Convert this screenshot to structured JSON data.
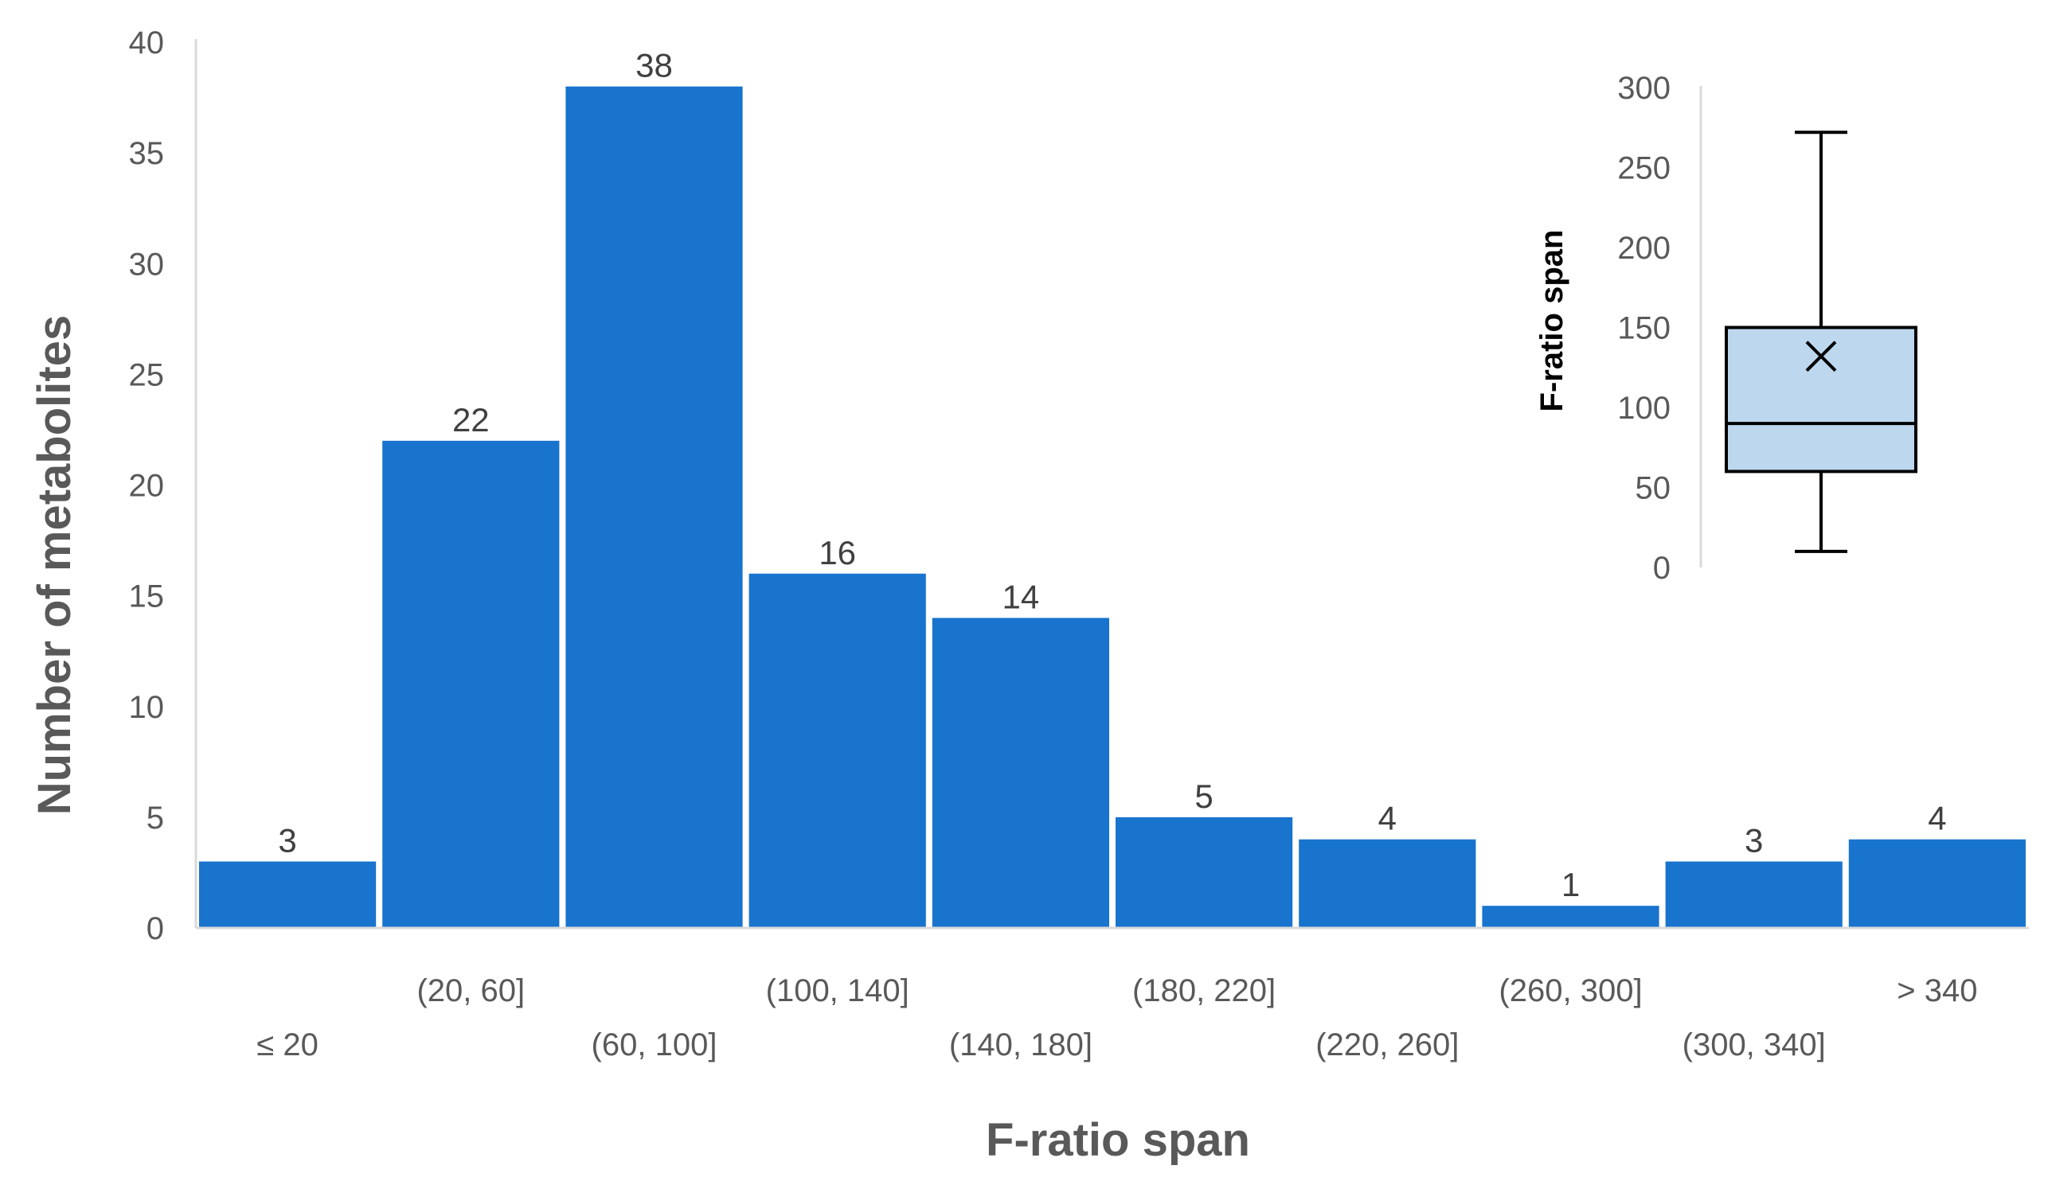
{
  "chart_data": [
    {
      "type": "bar",
      "title": "",
      "xlabel": "F-ratio span",
      "ylabel": "Number of metabolites",
      "ylim": [
        0,
        40
      ],
      "yticks": [
        0,
        5,
        10,
        15,
        20,
        25,
        30,
        35,
        40
      ],
      "categories": [
        "≤ 20",
        "(20, 60]",
        "(60, 100]",
        "(100, 140]",
        "(140, 180]",
        "(180, 220]",
        "(220, 260]",
        "(260, 300]",
        "(300, 340]",
        "> 340"
      ],
      "values": [
        3,
        22,
        38,
        16,
        14,
        5,
        4,
        1,
        3,
        4
      ],
      "bar_color": "#1874CD",
      "grid": false,
      "data_labels": true
    },
    {
      "type": "box",
      "ylabel": "F-ratio span",
      "ylim": [
        0,
        300
      ],
      "yticks": [
        0,
        50,
        100,
        150,
        200,
        250,
        300
      ],
      "whisker_min": 10,
      "q1": 60,
      "median": 90,
      "mean": 132,
      "q3": 150,
      "whisker_max": 272,
      "box_color": "#BDD7EE",
      "line_color": "#000000"
    }
  ]
}
